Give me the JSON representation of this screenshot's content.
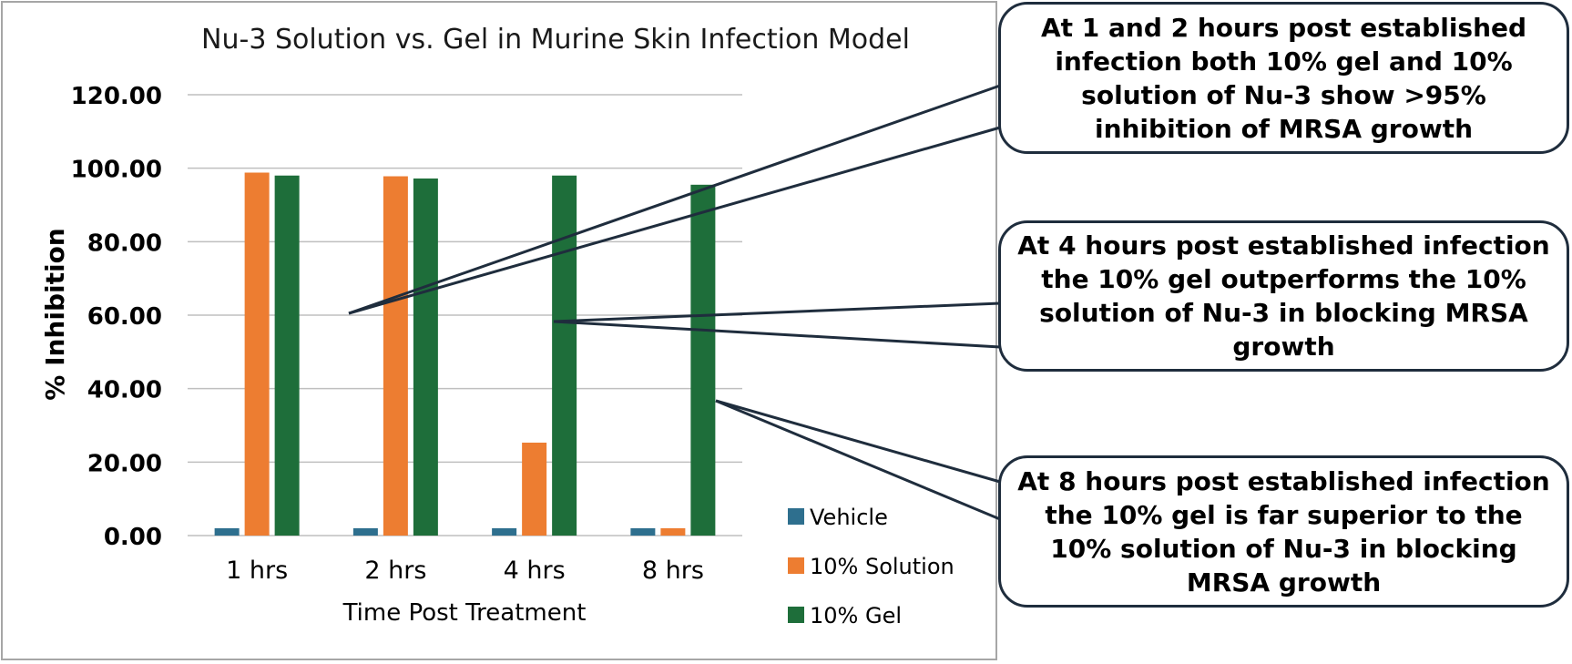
{
  "chart_data": {
    "type": "bar",
    "title": "Nu-3 Solution vs. Gel in Murine Skin Infection Model",
    "xlabel": "Time Post Treatment",
    "ylabel": "% Inhibition",
    "categories": [
      "1 hrs",
      "2 hrs",
      "4 hrs",
      "8 hrs"
    ],
    "yticks": [
      "0.00",
      "20.00",
      "40.00",
      "60.00",
      "80.00",
      "100.00",
      "120.00"
    ],
    "ylim": [
      0,
      120
    ],
    "grid": true,
    "legend_position": "bottom-right",
    "series": [
      {
        "name": "Vehicle",
        "color": "#2e6f8e",
        "values": [
          2,
          2,
          2,
          2
        ]
      },
      {
        "name": "10% Solution",
        "color": "#ed7d31",
        "values": [
          98.8,
          97.8,
          25.3,
          2
        ]
      },
      {
        "name": "10% Gel",
        "color": "#1e6e3a",
        "values": [
          98,
          97.2,
          98,
          95.5
        ]
      }
    ]
  },
  "callouts": [
    {
      "text": "At 1 and 2 hours post established infection both 10% gel and 10% solution of Nu-3 show >95% inhibition of MRSA growth"
    },
    {
      "text": "At 4 hours post established infection the 10% gel outperforms the 10% solution of Nu-3 in blocking MRSA growth"
    },
    {
      "text": "At 8 hours post established infection the 10% gel is far superior to the 10% solution of Nu-3 in blocking MRSA growth"
    }
  ],
  "colors": {
    "grid": "#bfbfbf",
    "frame": "#a6a6a6",
    "callout_border": "#1f2d3d"
  }
}
